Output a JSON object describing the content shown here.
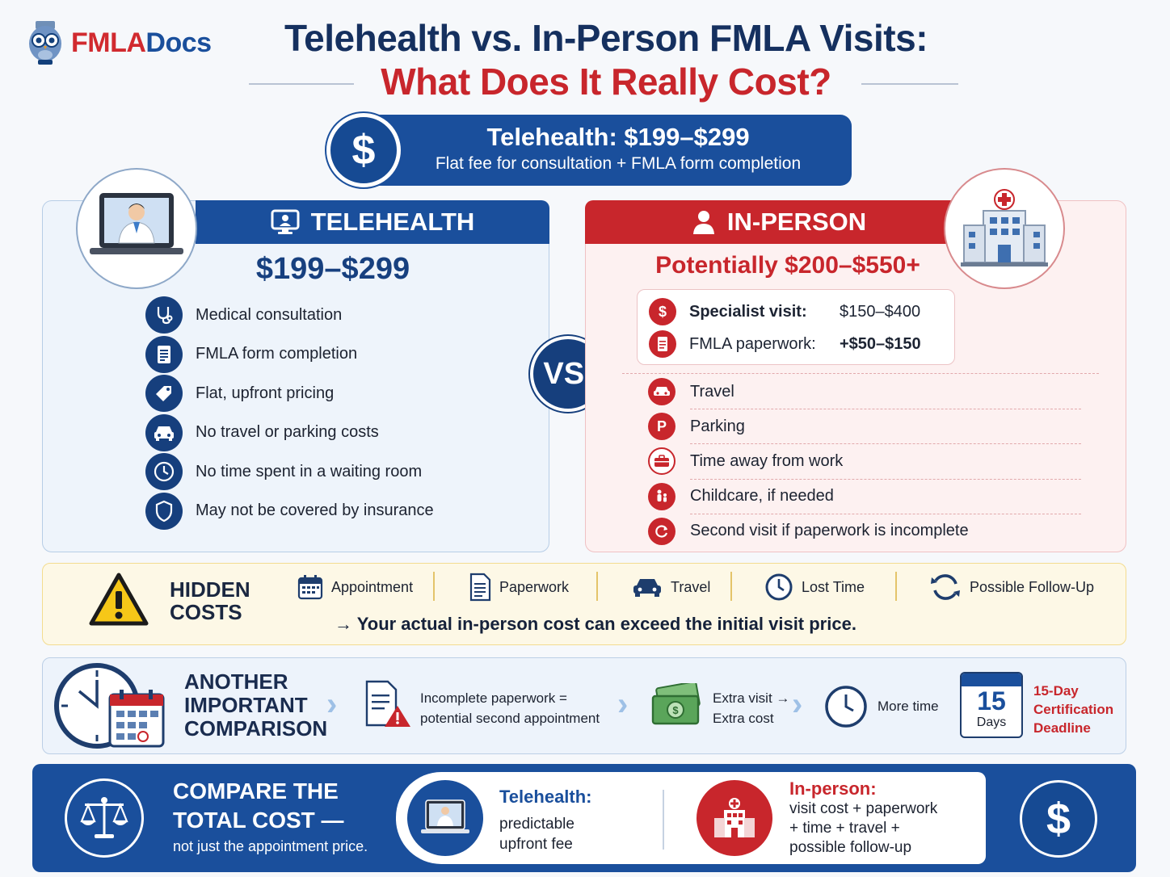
{
  "brand": {
    "part1": "FMLA",
    "part2": "Docs"
  },
  "title": {
    "line1": "Telehealth vs. In-Person FMLA Visits:",
    "line2": "What Does It Really Cost?"
  },
  "banner": {
    "symbol": "$",
    "heading": "Telehealth: $199–$299",
    "subheading": "Flat fee for consultation + FMLA form completion"
  },
  "telehealth": {
    "header": "TELEHEALTH",
    "price": "$199–$299",
    "items": [
      {
        "icon": "stethoscope-icon",
        "label": "Medical consultation"
      },
      {
        "icon": "form-icon",
        "label": "FMLA form completion"
      },
      {
        "icon": "price-tag-icon",
        "label": "Flat, upfront pricing"
      },
      {
        "icon": "car-icon",
        "label": "No travel or parking costs"
      },
      {
        "icon": "clock-icon",
        "label": "No time spent in a waiting room"
      },
      {
        "icon": "shield-icon",
        "label": "May not be covered by insurance"
      }
    ]
  },
  "vs_label": "VS.",
  "inperson": {
    "header": "IN-PERSON",
    "price": "Potentially $200–$550+",
    "costs": [
      {
        "icon": "dollar-icon",
        "label": "Specialist visit:",
        "value": "$150–$400"
      },
      {
        "icon": "document-icon",
        "label": "FMLA paperwork:",
        "value": "+$50–$150"
      }
    ],
    "items": [
      {
        "icon": "car-icon",
        "label": "Travel"
      },
      {
        "icon": "parking-icon",
        "label": "Parking"
      },
      {
        "icon": "briefcase-icon",
        "label": "Time away from work"
      },
      {
        "icon": "family-icon",
        "label": "Childcare, if needed"
      },
      {
        "icon": "refresh-icon",
        "label": "Second visit if paperwork is incomplete"
      }
    ]
  },
  "hidden_costs": {
    "title_line1": "HIDDEN",
    "title_line2": "COSTS",
    "items": [
      {
        "icon": "calendar-icon",
        "label": "Appointment"
      },
      {
        "icon": "paperwork-icon",
        "label": "Paperwork"
      },
      {
        "icon": "car-icon",
        "label": "Travel"
      },
      {
        "icon": "clock-icon",
        "label": "Lost Time"
      },
      {
        "icon": "follow-up-icon",
        "label": "Possible Follow-Up"
      }
    ],
    "note": "→ Your actual in-person cost can exceed the initial visit price."
  },
  "comparison": {
    "title_line1": "ANOTHER",
    "title_line2": "IMPORTANT",
    "title_line3": "COMPARISON",
    "step1_line1": "Incomplete paperwork =",
    "step1_line2": "potential second appointment",
    "step2_line1": "Extra visit →",
    "step2_line2": "Extra cost",
    "step3": "More time",
    "deadline_number": "15",
    "deadline_unit": "Days",
    "deadline_line1": "15-Day",
    "deadline_line2": "Certification",
    "deadline_line3": "Deadline"
  },
  "bottom": {
    "title_line1": "COMPARE THE",
    "title_line2": "TOTAL COST —",
    "subtitle": "not just the appointment price.",
    "tele_heading": "Telehealth:",
    "tele_line1": "predictable",
    "tele_line2": "upfront fee",
    "inperson_heading": "In-person:",
    "inperson_line1": "visit cost + paperwork",
    "inperson_line2": "+ time + travel +",
    "inperson_line3": "possible follow-up",
    "symbol": "$"
  },
  "colors": {
    "navy": "#1a4f9c",
    "red": "#c8262c",
    "yellow_bg": "#fdf8e6"
  }
}
